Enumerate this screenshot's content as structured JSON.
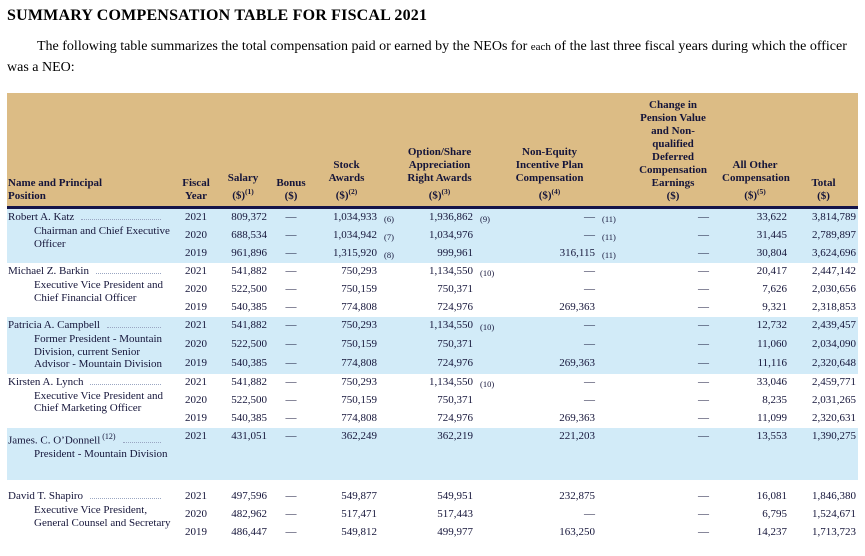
{
  "page": {
    "title": "SUMMARY COMPENSATION TABLE FOR FISCAL 2021",
    "intro_before": "The following table summarizes the total compensation paid or earned by the NEOs for ",
    "intro_each": "each",
    "intro_after": " of the last three fiscal years during which the officer was a NEO:"
  },
  "table": {
    "colors": {
      "header_bg": "#dcbc85",
      "highlight_row_bg": "#d2ebf8",
      "header_rule": "#14144a",
      "text": "#15153a"
    },
    "columns": [
      {
        "id": "name",
        "label_lines": [
          "Name and Principal",
          "Position"
        ],
        "sup": ""
      },
      {
        "id": "year",
        "label_lines": [
          "Fiscal",
          "Year"
        ],
        "sup": ""
      },
      {
        "id": "salary",
        "label_lines": [
          "Salary",
          "($)"
        ],
        "sup": "(1)"
      },
      {
        "id": "bonus",
        "label_lines": [
          "Bonus",
          "($)"
        ],
        "sup": ""
      },
      {
        "id": "stock",
        "label_lines": [
          "Stock",
          "Awards",
          "($)"
        ],
        "sup": "(2)"
      },
      {
        "id": "option",
        "label_lines": [
          "Option/Share",
          "Appreciation",
          "Right Awards",
          "($)"
        ],
        "sup": "(3)"
      },
      {
        "id": "nonequity",
        "label_lines": [
          "Non-Equity",
          "Incentive Plan",
          "Compensation",
          "($)"
        ],
        "sup": "(4)"
      },
      {
        "id": "pension",
        "label_lines": [
          "Change in",
          "Pension Value",
          "and Non-",
          "qualified",
          "Deferred",
          "Compensation",
          "Earnings",
          "($)"
        ],
        "sup": ""
      },
      {
        "id": "allother",
        "label_lines": [
          "All Other",
          "Compensation",
          "($)"
        ],
        "sup": "(5)"
      },
      {
        "id": "total",
        "label_lines": [
          "Total",
          "($)"
        ],
        "sup": ""
      }
    ],
    "groups": [
      {
        "name": "Robert A. Katz",
        "name_sup": "",
        "position": "Chairman and Chief Executive Officer",
        "highlight": true,
        "tall": false,
        "gap_after": false,
        "rows": [
          {
            "year": "2021",
            "salary": "809,372",
            "bonus": "—",
            "stock": "1,034,933",
            "stock_fn": "(6)",
            "option": "1,936,862",
            "option_fn": "(9)",
            "nonequity": "—",
            "nonequity_fn": "(11)",
            "pension": "—",
            "allother": "33,622",
            "total": "3,814,789"
          },
          {
            "year": "2020",
            "salary": "688,534",
            "bonus": "—",
            "stock": "1,034,942",
            "stock_fn": "(7)",
            "option": "1,034,976",
            "option_fn": "",
            "nonequity": "—",
            "nonequity_fn": "(11)",
            "pension": "—",
            "allother": "31,445",
            "total": "2,789,897"
          },
          {
            "year": "2019",
            "salary": "961,896",
            "bonus": "—",
            "stock": "1,315,920",
            "stock_fn": "(8)",
            "option": "999,961",
            "option_fn": "",
            "nonequity": "316,115",
            "nonequity_fn": "(11)",
            "pension": "—",
            "allother": "30,804",
            "total": "3,624,696"
          }
        ]
      },
      {
        "name": "Michael Z. Barkin",
        "name_sup": "",
        "position": "Executive Vice President and Chief Financial Officer",
        "highlight": false,
        "tall": false,
        "gap_after": false,
        "rows": [
          {
            "year": "2021",
            "salary": "541,882",
            "bonus": "—",
            "stock": "750,293",
            "stock_fn": "",
            "option": "1,134,550",
            "option_fn": "(10)",
            "nonequity": "—",
            "nonequity_fn": "",
            "pension": "—",
            "allother": "20,417",
            "total": "2,447,142"
          },
          {
            "year": "2020",
            "salary": "522,500",
            "bonus": "—",
            "stock": "750,159",
            "stock_fn": "",
            "option": "750,371",
            "option_fn": "",
            "nonequity": "—",
            "nonequity_fn": "",
            "pension": "—",
            "allother": "7,626",
            "total": "2,030,656"
          },
          {
            "year": "2019",
            "salary": "540,385",
            "bonus": "—",
            "stock": "774,808",
            "stock_fn": "",
            "option": "724,976",
            "option_fn": "",
            "nonequity": "269,363",
            "nonequity_fn": "",
            "pension": "—",
            "allother": "9,321",
            "total": "2,318,853"
          }
        ]
      },
      {
        "name": "Patricia A. Campbell",
        "name_sup": "",
        "position": "Former President - Mountain Division, current Senior Advisor - Mountain Division",
        "highlight": true,
        "tall": false,
        "gap_after": false,
        "rows": [
          {
            "year": "2021",
            "salary": "541,882",
            "bonus": "—",
            "stock": "750,293",
            "stock_fn": "",
            "option": "1,134,550",
            "option_fn": "(10)",
            "nonequity": "—",
            "nonequity_fn": "",
            "pension": "—",
            "allother": "12,732",
            "total": "2,439,457"
          },
          {
            "year": "2020",
            "salary": "522,500",
            "bonus": "—",
            "stock": "750,159",
            "stock_fn": "",
            "option": "750,371",
            "option_fn": "",
            "nonequity": "—",
            "nonequity_fn": "",
            "pension": "—",
            "allother": "11,060",
            "total": "2,034,090"
          },
          {
            "year": "2019",
            "salary": "540,385",
            "bonus": "—",
            "stock": "774,808",
            "stock_fn": "",
            "option": "724,976",
            "option_fn": "",
            "nonequity": "269,363",
            "nonequity_fn": "",
            "pension": "—",
            "allother": "11,116",
            "total": "2,320,648"
          }
        ]
      },
      {
        "name": "Kirsten A. Lynch",
        "name_sup": "",
        "position": "Executive Vice President and Chief Marketing Officer",
        "highlight": false,
        "tall": false,
        "gap_after": false,
        "rows": [
          {
            "year": "2021",
            "salary": "541,882",
            "bonus": "—",
            "stock": "750,293",
            "stock_fn": "",
            "option": "1,134,550",
            "option_fn": "(10)",
            "nonequity": "—",
            "nonequity_fn": "",
            "pension": "—",
            "allother": "33,046",
            "total": "2,459,771"
          },
          {
            "year": "2020",
            "salary": "522,500",
            "bonus": "—",
            "stock": "750,159",
            "stock_fn": "",
            "option": "750,371",
            "option_fn": "",
            "nonequity": "—",
            "nonequity_fn": "",
            "pension": "—",
            "allother": "8,235",
            "total": "2,031,265"
          },
          {
            "year": "2019",
            "salary": "540,385",
            "bonus": "—",
            "stock": "774,808",
            "stock_fn": "",
            "option": "724,976",
            "option_fn": "",
            "nonequity": "269,363",
            "nonequity_fn": "",
            "pension": "—",
            "allother": "11,099",
            "total": "2,320,631"
          }
        ]
      },
      {
        "name": "James. C. O’Donnell",
        "name_sup": "(12)",
        "position": "President - Mountain Division",
        "highlight": true,
        "tall": true,
        "gap_after": true,
        "rows": [
          {
            "year": "2021",
            "salary": "431,051",
            "bonus": "—",
            "stock": "362,249",
            "stock_fn": "",
            "option": "362,219",
            "option_fn": "",
            "nonequity": "221,203",
            "nonequity_fn": "",
            "pension": "—",
            "allother": "13,553",
            "total": "1,390,275"
          }
        ]
      },
      {
        "name": "David T. Shapiro",
        "name_sup": "",
        "position": "Executive Vice President, General Counsel and Secretary",
        "highlight": false,
        "tall": false,
        "gap_after": false,
        "rows": [
          {
            "year": "2021",
            "salary": "497,596",
            "bonus": "—",
            "stock": "549,877",
            "stock_fn": "",
            "option": "549,951",
            "option_fn": "",
            "nonequity": "232,875",
            "nonequity_fn": "",
            "pension": "—",
            "allother": "16,081",
            "total": "1,846,380"
          },
          {
            "year": "2020",
            "salary": "482,962",
            "bonus": "—",
            "stock": "517,471",
            "stock_fn": "",
            "option": "517,443",
            "option_fn": "",
            "nonequity": "—",
            "nonequity_fn": "",
            "pension": "—",
            "allother": "6,795",
            "total": "1,524,671"
          },
          {
            "year": "2019",
            "salary": "486,447",
            "bonus": "—",
            "stock": "549,812",
            "stock_fn": "",
            "option": "499,977",
            "option_fn": "",
            "nonequity": "163,250",
            "nonequity_fn": "",
            "pension": "—",
            "allother": "14,237",
            "total": "1,713,723"
          }
        ]
      }
    ]
  }
}
